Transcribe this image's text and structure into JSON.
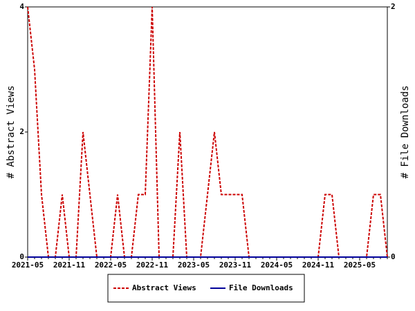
{
  "chart_data": {
    "type": "line",
    "categories": [
      "2021-05",
      null,
      null,
      null,
      null,
      null,
      "2021-11",
      null,
      null,
      null,
      null,
      null,
      "2022-05",
      null,
      null,
      null,
      null,
      null,
      "2022-11",
      null,
      null,
      null,
      null,
      null,
      "2023-05",
      null,
      null,
      null,
      null,
      null,
      "2023-11",
      null,
      null,
      null,
      null,
      null,
      "2024-05",
      null,
      null,
      null,
      null,
      null,
      "2024-11",
      null,
      null,
      null,
      null,
      null,
      "2025-05",
      null,
      null,
      null,
      null
    ],
    "y_label": "# Abstract Views",
    "y2_label": "# File Downloads",
    "ylim": [
      0,
      4
    ],
    "yticks": [
      0,
      2,
      4
    ],
    "y2lim": [
      0,
      2
    ],
    "y2ticks": [
      0,
      2
    ],
    "legend": "bottom",
    "series": [
      {
        "name": "Abstract Views",
        "color": "#cc0000",
        "dashed": true,
        "values": [
          4,
          3,
          1,
          0,
          0,
          1,
          0,
          0,
          2,
          1,
          0,
          0,
          0,
          1,
          0,
          0,
          1,
          1,
          4,
          0,
          0,
          0,
          2,
          0,
          0,
          0,
          1,
          2,
          1,
          1,
          1,
          1,
          0,
          0,
          0,
          0,
          0,
          0,
          0,
          0,
          0,
          0,
          0,
          1,
          1,
          0,
          0,
          0,
          0,
          0,
          1,
          1,
          0
        ]
      },
      {
        "name": "File Downloads",
        "color": "#000099",
        "dashed": false,
        "axis": "y2",
        "values": [
          0,
          0,
          0,
          0,
          0,
          0,
          0,
          0,
          0,
          0,
          0,
          0,
          0,
          0,
          0,
          0,
          0,
          0,
          0,
          0,
          0,
          0,
          0,
          0,
          0,
          0,
          0,
          0,
          0,
          0,
          0,
          0,
          0,
          0,
          0,
          0,
          0,
          0,
          0,
          0,
          0,
          0,
          0,
          0,
          0,
          0,
          0,
          0,
          0,
          0,
          0,
          0,
          0
        ]
      }
    ]
  }
}
